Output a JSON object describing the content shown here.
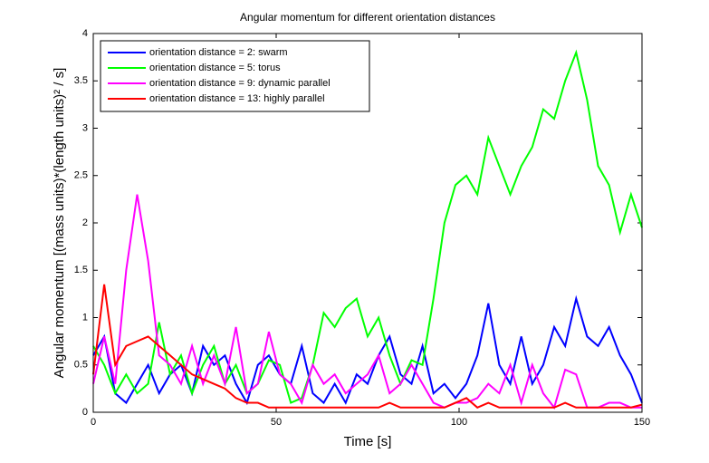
{
  "chart_data": {
    "type": "line",
    "title": "Angular momentum for different orientation distances",
    "x_label": "Time [s]",
    "y_label": "Angular momentum  [(mass units)*(length units)² / s]",
    "x": [
      0,
      3,
      6,
      9,
      12,
      15,
      18,
      21,
      24,
      27,
      30,
      33,
      36,
      39,
      42,
      45,
      48,
      51,
      54,
      57,
      60,
      63,
      66,
      69,
      72,
      75,
      78,
      81,
      84,
      87,
      90,
      93,
      96,
      99,
      102,
      105,
      108,
      111,
      114,
      117,
      120,
      123,
      126,
      129,
      132,
      135,
      138,
      141,
      144,
      147,
      150
    ],
    "series": [
      {
        "name": "orientation distance = 2: swarm",
        "color": "#0000ff",
        "values": [
          0.6,
          0.8,
          0.2,
          0.1,
          0.3,
          0.5,
          0.2,
          0.4,
          0.5,
          0.2,
          0.7,
          0.5,
          0.6,
          0.3,
          0.1,
          0.5,
          0.6,
          0.4,
          0.3,
          0.7,
          0.2,
          0.1,
          0.3,
          0.1,
          0.4,
          0.3,
          0.6,
          0.8,
          0.4,
          0.3,
          0.7,
          0.2,
          0.3,
          0.15,
          0.3,
          0.6,
          1.15,
          0.5,
          0.3,
          0.8,
          0.3,
          0.5,
          0.9,
          0.7,
          1.2,
          0.8,
          0.7,
          0.9,
          0.6,
          0.4,
          0.1
        ]
      },
      {
        "name": "orientation distance = 5: torus",
        "color": "#00ff00",
        "values": [
          0.7,
          0.5,
          0.2,
          0.4,
          0.2,
          0.3,
          0.95,
          0.4,
          0.6,
          0.2,
          0.5,
          0.7,
          0.3,
          0.5,
          0.2,
          0.3,
          0.55,
          0.5,
          0.1,
          0.15,
          0.5,
          1.05,
          0.9,
          1.1,
          1.2,
          0.8,
          1.0,
          0.6,
          0.3,
          0.55,
          0.5,
          1.2,
          2.0,
          2.4,
          2.5,
          2.3,
          2.9,
          2.6,
          2.3,
          2.6,
          2.8,
          3.2,
          3.1,
          3.5,
          3.8,
          3.3,
          2.6,
          2.4,
          1.9,
          2.3,
          1.95
        ]
      },
      {
        "name": "orientation distance = 9: dynamic parallel",
        "color": "#ff00ff",
        "values": [
          0.3,
          0.8,
          0.3,
          1.5,
          2.3,
          1.6,
          0.6,
          0.5,
          0.3,
          0.7,
          0.3,
          0.6,
          0.3,
          0.9,
          0.2,
          0.3,
          0.85,
          0.4,
          0.3,
          0.1,
          0.5,
          0.3,
          0.4,
          0.2,
          0.3,
          0.4,
          0.6,
          0.2,
          0.3,
          0.5,
          0.3,
          0.1,
          0.05,
          0.1,
          0.1,
          0.15,
          0.3,
          0.2,
          0.5,
          0.1,
          0.5,
          0.2,
          0.05,
          0.45,
          0.4,
          0.05,
          0.05,
          0.1,
          0.1,
          0.05,
          0.05
        ]
      },
      {
        "name": "orientation distance = 13: highly parallel",
        "color": "#ff0000",
        "values": [
          0.4,
          1.35,
          0.5,
          0.7,
          0.75,
          0.8,
          0.7,
          0.6,
          0.5,
          0.4,
          0.35,
          0.3,
          0.25,
          0.15,
          0.1,
          0.1,
          0.05,
          0.05,
          0.05,
          0.05,
          0.05,
          0.05,
          0.05,
          0.05,
          0.05,
          0.05,
          0.05,
          0.1,
          0.05,
          0.05,
          0.05,
          0.05,
          0.05,
          0.1,
          0.15,
          0.05,
          0.1,
          0.05,
          0.05,
          0.05,
          0.05,
          0.05,
          0.05,
          0.1,
          0.05,
          0.05,
          0.05,
          0.05,
          0.05,
          0.05,
          0.08
        ]
      }
    ],
    "xlim": [
      0,
      150
    ],
    "xticks": [
      0,
      50,
      100,
      150
    ],
    "ylim": [
      0,
      4
    ],
    "yticks": [
      0,
      0.5,
      1,
      1.5,
      2,
      2.5,
      3,
      3.5,
      4
    ],
    "grid": false,
    "legend_position": "upper-left"
  }
}
